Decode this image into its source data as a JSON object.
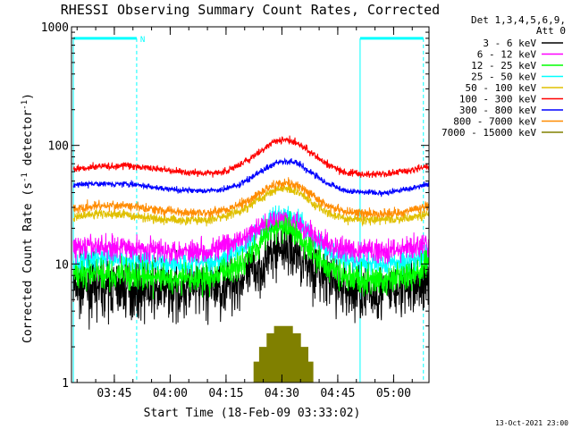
{
  "chart_data": {
    "type": "line",
    "title": "RHESSI Observing Summary Count Rates, Corrected",
    "xlabel": "Start Time (18-Feb-09 03:33:02)",
    "ylabel_main": "Corrected Count Rate (s",
    "ylabel_sup1": "-1",
    "ylabel_mid": " detector",
    "ylabel_sup2": "-1",
    "ylabel_end": ")",
    "yscale": "log",
    "ylim": [
      1,
      1000
    ],
    "xlim_minutes": [
      3.5,
      99.5
    ],
    "y_ticks": [
      {
        "value": 1,
        "label": "1"
      },
      {
        "value": 10,
        "label": "10"
      },
      {
        "value": 100,
        "label": "100"
      },
      {
        "value": 1000,
        "label": "1000"
      }
    ],
    "x_ticks": [
      {
        "value": 15,
        "label": "03:45"
      },
      {
        "value": 30,
        "label": "04:00"
      },
      {
        "value": 45,
        "label": "04:15"
      },
      {
        "value": 60,
        "label": "04:30"
      },
      {
        "value": 75,
        "label": "04:45"
      },
      {
        "value": 90,
        "label": "05:00"
      }
    ],
    "legend_header": [
      "Det 1,3,4,5,6,9,",
      "Att 0"
    ],
    "legend_position": "right",
    "series": [
      {
        "name": "3 - 6 keV",
        "color": "#000000",
        "baseline": 6.3,
        "peak": 14,
        "noise": 0.12,
        "x": [
          4,
          10,
          18,
          25,
          32,
          40,
          45,
          50,
          55,
          58,
          61,
          64,
          68,
          72,
          77,
          82,
          88,
          94,
          99.5
        ],
        "values": [
          6.3,
          6.4,
          6.3,
          6.1,
          6.0,
          6.1,
          6.5,
          7.5,
          10,
          13,
          14,
          12.5,
          9.5,
          7.2,
          6.1,
          5.6,
          5.8,
          6.3,
          7.0
        ]
      },
      {
        "name": "6 - 12 keV",
        "color": "#ff00ff",
        "baseline": 14,
        "peak": 24,
        "noise": 0.05,
        "x": [
          4,
          10,
          18,
          25,
          32,
          40,
          45,
          50,
          55,
          58,
          61,
          64,
          68,
          72,
          77,
          82,
          88,
          94,
          99.5
        ],
        "values": [
          13.5,
          14,
          13.8,
          13.2,
          13,
          13,
          14,
          16.5,
          21,
          24,
          24,
          22,
          17.5,
          14.5,
          13.2,
          13,
          13,
          13.5,
          14.5
        ]
      },
      {
        "name": "12 - 25 keV",
        "color": "#00ff00",
        "baseline": 7.5,
        "peak": 20,
        "noise": 0.06,
        "x": [
          4,
          10,
          18,
          25,
          32,
          40,
          45,
          50,
          55,
          58,
          61,
          64,
          68,
          72,
          77,
          82,
          88,
          94,
          99.5
        ],
        "values": [
          8,
          8.2,
          8.0,
          7.6,
          7.4,
          7.5,
          8.5,
          11,
          16,
          19.5,
          20,
          18,
          13,
          9.5,
          7.8,
          7.2,
          7.2,
          8,
          9.5
        ]
      },
      {
        "name": "25 - 50 keV",
        "color": "#00ffff",
        "baseline": 11,
        "peak": 25,
        "noise": 0.05,
        "x": [
          4,
          10,
          18,
          25,
          32,
          40,
          45,
          50,
          55,
          58,
          61,
          64,
          68,
          72,
          77,
          82,
          88,
          94,
          99.5
        ],
        "values": [
          10,
          11,
          10.8,
          10.2,
          10,
          10.2,
          11.5,
          14,
          20,
          24,
          25,
          23,
          17,
          13,
          10.8,
          10,
          10,
          10.5,
          12
        ]
      },
      {
        "name": "50 - 100 keV",
        "color": "#e0c000",
        "baseline": 24,
        "peak": 44,
        "noise": 0.02,
        "x": [
          4,
          10,
          18,
          25,
          32,
          40,
          45,
          50,
          55,
          58,
          61,
          64,
          68,
          72,
          77,
          82,
          88,
          94,
          99.5
        ],
        "values": [
          25,
          26.5,
          26,
          24.5,
          23.5,
          23.5,
          25,
          29,
          37,
          42,
          44,
          41,
          33,
          27,
          24,
          23.5,
          23.5,
          24.5,
          26.5
        ]
      },
      {
        "name": "100 - 300 keV",
        "color": "#ff0000",
        "baseline": 62,
        "peak": 113,
        "noise": 0.015,
        "x": [
          4,
          10,
          18,
          25,
          32,
          40,
          45,
          50,
          55,
          58,
          61,
          64,
          68,
          72,
          77,
          82,
          88,
          94,
          99.5
        ],
        "values": [
          63,
          66,
          68,
          64,
          60,
          58,
          61,
          71,
          92,
          108,
          113,
          106,
          86,
          69,
          59,
          57,
          57,
          61,
          67
        ]
      },
      {
        "name": "300 - 800 keV",
        "color": "#0000ff",
        "baseline": 45,
        "peak": 74,
        "noise": 0.012,
        "x": [
          4,
          10,
          18,
          25,
          32,
          40,
          45,
          50,
          55,
          58,
          61,
          64,
          68,
          72,
          77,
          82,
          88,
          94,
          99.5
        ],
        "values": [
          46,
          47.5,
          47.5,
          44.5,
          42,
          41,
          43,
          49,
          62,
          71,
          74,
          71,
          59,
          48,
          41.5,
          40,
          40,
          43,
          47
        ]
      },
      {
        "name": "800 - 7000 keV",
        "color": "#ff8c00",
        "baseline": 29,
        "peak": 49,
        "noise": 0.02,
        "x": [
          4,
          10,
          18,
          25,
          32,
          40,
          45,
          50,
          55,
          58,
          61,
          64,
          68,
          72,
          77,
          82,
          88,
          94,
          99.5
        ],
        "values": [
          29,
          31,
          31,
          29,
          27.5,
          27,
          28.5,
          33,
          41,
          47,
          49,
          46,
          38,
          31,
          27.5,
          26.5,
          26.5,
          28,
          31
        ]
      },
      {
        "name": "7000 - 15000 keV",
        "color": "#808000",
        "baseline": 1,
        "peak": 3,
        "noise": 0,
        "steps": [
          [
            52.5,
            54,
            1.5
          ],
          [
            54,
            56,
            2.0
          ],
          [
            56,
            58,
            2.6
          ],
          [
            58,
            63,
            3.0
          ],
          [
            63,
            65,
            2.6
          ],
          [
            65,
            67,
            2.0
          ],
          [
            67,
            68.5,
            1.5
          ]
        ]
      }
    ],
    "annotations": [
      {
        "text": "N",
        "x": 21,
        "y": 800
      }
    ],
    "vertical_lines": [
      {
        "x": 4,
        "style": "solid",
        "color": "#00ffff"
      },
      {
        "x": 21,
        "style": "dashed",
        "color": "#00ffff"
      },
      {
        "x": 81,
        "style": "solid",
        "color": "#00ffff"
      },
      {
        "x": 98,
        "style": "dashed",
        "color": "#00ffff"
      }
    ],
    "top_bars": [
      {
        "x0": 4,
        "x1": 21,
        "y": 800,
        "color": "#00ffff"
      },
      {
        "x0": 81,
        "x1": 98,
        "y": 800,
        "color": "#00ffff"
      }
    ],
    "footer_stamp": "13-Oct-2021 23:00"
  }
}
